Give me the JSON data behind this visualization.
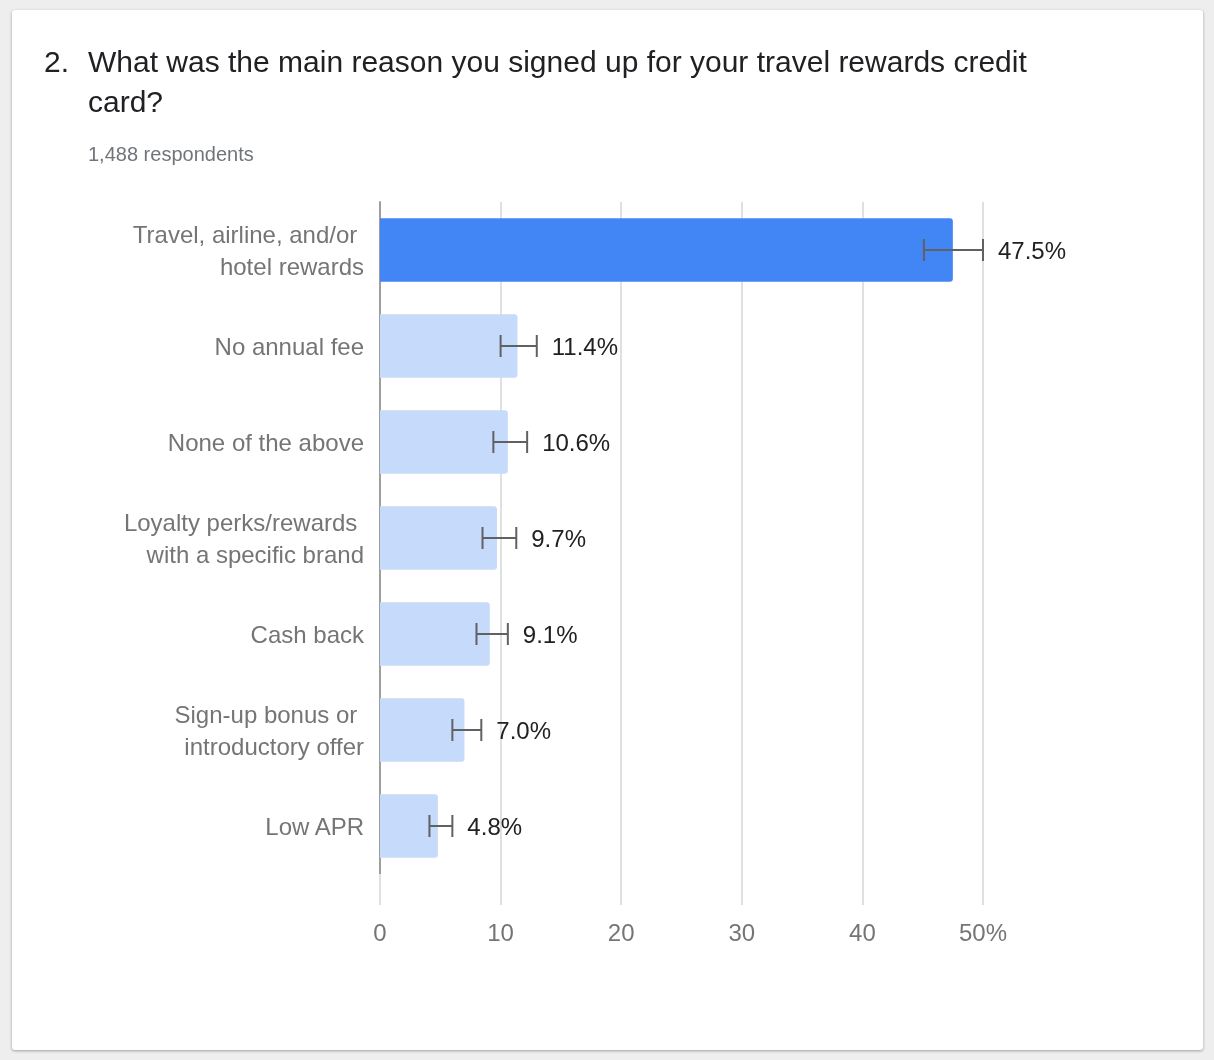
{
  "chart_data": {
    "type": "bar",
    "orientation": "horizontal",
    "title": "2. What was the main reason you signed up for your travel rewards credit card?",
    "subtitle": "1,488 respondents",
    "categories": [
      "Travel, airline, and/or hotel rewards",
      "No annual fee",
      "None of the above",
      "Loyalty perks/rewards with a specific brand",
      "Cash back",
      "Sign-up bonus or introductory offer",
      "Low APR"
    ],
    "values": [
      47.5,
      11.4,
      10.6,
      9.7,
      9.1,
      7.0,
      4.8
    ],
    "colors": [
      "#4285f4",
      "#c6dafc",
      "#c6dafc",
      "#c6dafc",
      "#c6dafc",
      "#c6dafc",
      "#c6dafc"
    ],
    "errors": [
      [
        45.1,
        50.0
      ],
      [
        10.0,
        13.0
      ],
      [
        9.4,
        12.2
      ],
      [
        8.5,
        11.3
      ],
      [
        8.0,
        10.6
      ],
      [
        6.0,
        8.4
      ],
      [
        4.1,
        6.0
      ]
    ],
    "value_labels": [
      "47.5%",
      "11.4%",
      "10.6%",
      "9.7%",
      "9.1%",
      "7.0%",
      "4.8%"
    ],
    "xlim": [
      0,
      50
    ],
    "xticks": [
      0,
      10,
      20,
      30,
      40,
      {
        "value": 50,
        "label": "50%"
      }
    ],
    "grid": "x"
  }
}
